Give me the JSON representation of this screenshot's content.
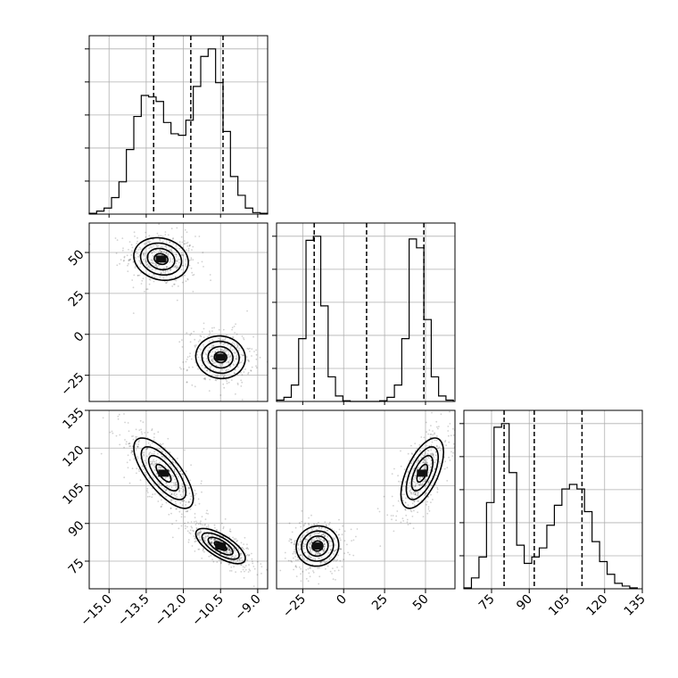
{
  "chart_data": {
    "type": "corner",
    "grid": true,
    "params": [
      {
        "id": "p0",
        "range": [
          -15.8,
          -8.6
        ],
        "ticks": [
          -15.0,
          -13.5,
          -12.0,
          -10.5,
          -9.0
        ],
        "tick_labels": [
          "−15.0",
          "−13.5",
          "−12.0",
          "−10.5",
          "−9.0"
        ]
      },
      {
        "id": "p1",
        "range": [
          -41,
          68
        ],
        "ticks": [
          -25,
          0,
          25,
          50
        ],
        "tick_labels": [
          "−25",
          "0",
          "25",
          "50"
        ]
      },
      {
        "id": "p2",
        "range": [
          64,
          135
        ],
        "ticks": [
          75,
          90,
          105,
          120,
          135
        ],
        "tick_labels": [
          "75",
          "90",
          "105",
          "120",
          "135"
        ]
      }
    ],
    "histograms": [
      {
        "param": "p0",
        "bin_edges": [
          -15.8,
          -15.5,
          -15.2,
          -14.9,
          -14.6,
          -14.3,
          -14.0,
          -13.7,
          -13.4,
          -13.1,
          -12.8,
          -12.5,
          -12.2,
          -11.9,
          -11.6,
          -11.3,
          -11.0,
          -10.7,
          -10.4,
          -10.1,
          -9.8,
          -9.5,
          -9.2,
          -8.9,
          -8.6
        ],
        "counts": [
          1,
          4,
          8,
          22,
          43,
          86,
          130,
          158,
          156,
          150,
          122,
          107,
          105,
          125,
          170,
          210,
          220,
          175,
          110,
          50,
          25,
          8,
          2,
          1
        ],
        "quantiles": [
          -13.2,
          -11.7,
          -10.4
        ]
      },
      {
        "param": "p1",
        "bin_edges": [
          -41,
          -36.5,
          -32,
          -27.5,
          -23,
          -18.5,
          -14,
          -9.5,
          -5,
          -0.5,
          4,
          8.5,
          13,
          17.5,
          22,
          26.5,
          31,
          35.5,
          40,
          44.5,
          49,
          53.5,
          58,
          62.5,
          67
        ],
        "counts": [
          2,
          6,
          24,
          92,
          236,
          242,
          140,
          36,
          8,
          1,
          0,
          0,
          0,
          0,
          1,
          6,
          24,
          92,
          238,
          225,
          120,
          36,
          8,
          2
        ],
        "quantiles": [
          -18,
          14,
          49
        ]
      },
      {
        "param": "p2",
        "bin_edges": [
          64,
          67,
          70,
          73,
          76,
          79,
          82,
          85,
          88,
          91,
          94,
          97,
          100,
          103,
          106,
          109,
          112,
          115,
          118,
          121,
          124,
          127,
          130,
          133
        ],
        "counts": [
          1,
          12,
          35,
          95,
          178,
          182,
          128,
          48,
          28,
          35,
          45,
          70,
          92,
          110,
          115,
          110,
          85,
          52,
          30,
          16,
          6,
          3,
          1
        ],
        "quantiles": [
          80,
          92,
          111
        ]
      }
    ],
    "joint": [
      {
        "x": "p0",
        "y": "p1",
        "modes": [
          {
            "cx": -12.9,
            "cy": 46,
            "sx": 0.55,
            "sy": 6.5,
            "rho": -0.15
          },
          {
            "cx": -10.5,
            "cy": -14,
            "sx": 0.5,
            "sy": 6.5,
            "rho": -0.05
          }
        ]
      },
      {
        "x": "p0",
        "y": "p2",
        "modes": [
          {
            "cx": -12.8,
            "cy": 110,
            "sx": 0.6,
            "sy": 7,
            "rho": -0.72
          },
          {
            "cx": -10.5,
            "cy": 81,
            "sx": 0.5,
            "sy": 3.5,
            "rho": -0.7
          }
        ]
      },
      {
        "x": "p1",
        "y": "p2",
        "modes": [
          {
            "cx": -16,
            "cy": 81,
            "sx": 6.5,
            "sy": 4,
            "rho": 0.05
          },
          {
            "cx": 48,
            "cy": 110,
            "sx": 6.5,
            "sy": 7,
            "rho": 0.6
          }
        ]
      }
    ],
    "contour_levels_sigma": [
      0.5,
      1.0,
      1.5,
      2.0
    ]
  }
}
